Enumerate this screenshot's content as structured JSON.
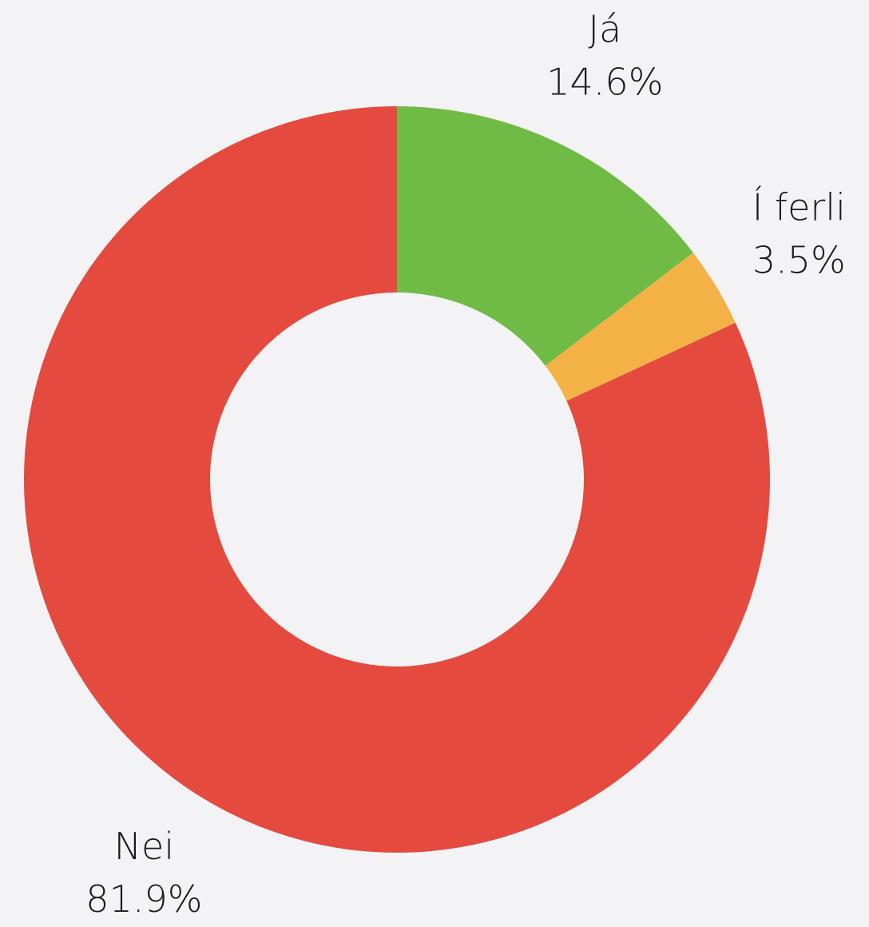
{
  "chart_data": {
    "type": "donut",
    "categories": [
      "Já",
      "Í ferli",
      "Nei"
    ],
    "values": [
      14.6,
      3.5,
      81.9
    ],
    "value_labels": [
      "14.6%",
      "3.5%",
      "81.9%"
    ],
    "colors": [
      "#6fbb45",
      "#f4b146",
      "#e54a3f"
    ]
  }
}
